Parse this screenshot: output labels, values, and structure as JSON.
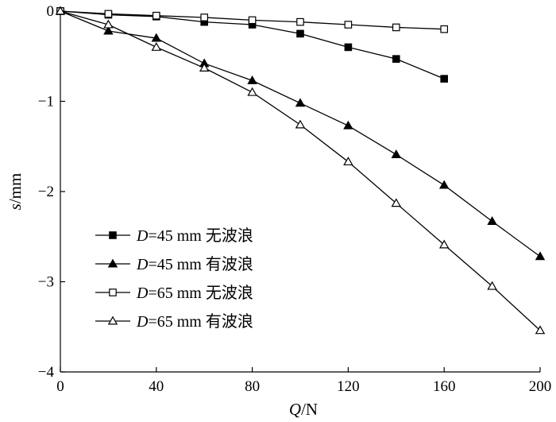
{
  "chart_data": {
    "type": "line",
    "xlabel": {
      "var": "Q",
      "unit": "N"
    },
    "ylabel": {
      "var": "s",
      "unit": "mm"
    },
    "xlim": [
      0,
      200
    ],
    "ylim": [
      -4,
      0
    ],
    "xticks": [
      0,
      40,
      80,
      120,
      160,
      200
    ],
    "yticks": [
      0,
      -1,
      -2,
      -3,
      -4
    ],
    "xtick_labels": [
      "0",
      "40",
      "80",
      "120",
      "160",
      "200"
    ],
    "ytick_labels": [
      "0",
      "−1",
      "−2",
      "−3",
      "−4"
    ],
    "legend_position": "left-bottom",
    "series": [
      {
        "name": "D=45 mm 无波浪",
        "label_var": "D",
        "label_rest": "=45 mm 无波浪",
        "marker": "filled-square",
        "x": [
          0,
          20,
          40,
          60,
          80,
          100,
          120,
          140,
          160
        ],
        "y": [
          0,
          -0.04,
          -0.06,
          -0.12,
          -0.15,
          -0.25,
          -0.4,
          -0.53,
          -0.75
        ]
      },
      {
        "name": "D=45 mm 有波浪",
        "label_var": "D",
        "label_rest": "=45 mm 有波浪",
        "marker": "filled-triangle",
        "x": [
          0,
          20,
          40,
          60,
          80,
          100,
          120,
          140,
          160,
          180,
          200
        ],
        "y": [
          0,
          -0.22,
          -0.3,
          -0.58,
          -0.77,
          -1.02,
          -1.27,
          -1.59,
          -1.93,
          -2.33,
          -2.72
        ]
      },
      {
        "name": "D=65 mm 无波浪",
        "label_var": "D",
        "label_rest": "=65 mm 无波浪",
        "marker": "open-square",
        "x": [
          0,
          20,
          40,
          60,
          80,
          100,
          120,
          140,
          160
        ],
        "y": [
          0,
          -0.03,
          -0.05,
          -0.07,
          -0.1,
          -0.12,
          -0.15,
          -0.18,
          -0.2
        ]
      },
      {
        "name": "D=65 mm 有波浪",
        "label_var": "D",
        "label_rest": "=65 mm 有波浪",
        "marker": "open-triangle",
        "x": [
          0,
          20,
          40,
          60,
          80,
          100,
          120,
          140,
          160,
          180,
          200
        ],
        "y": [
          0,
          -0.15,
          -0.4,
          -0.63,
          -0.9,
          -1.26,
          -1.67,
          -2.13,
          -2.59,
          -3.05,
          -3.54
        ]
      }
    ]
  }
}
